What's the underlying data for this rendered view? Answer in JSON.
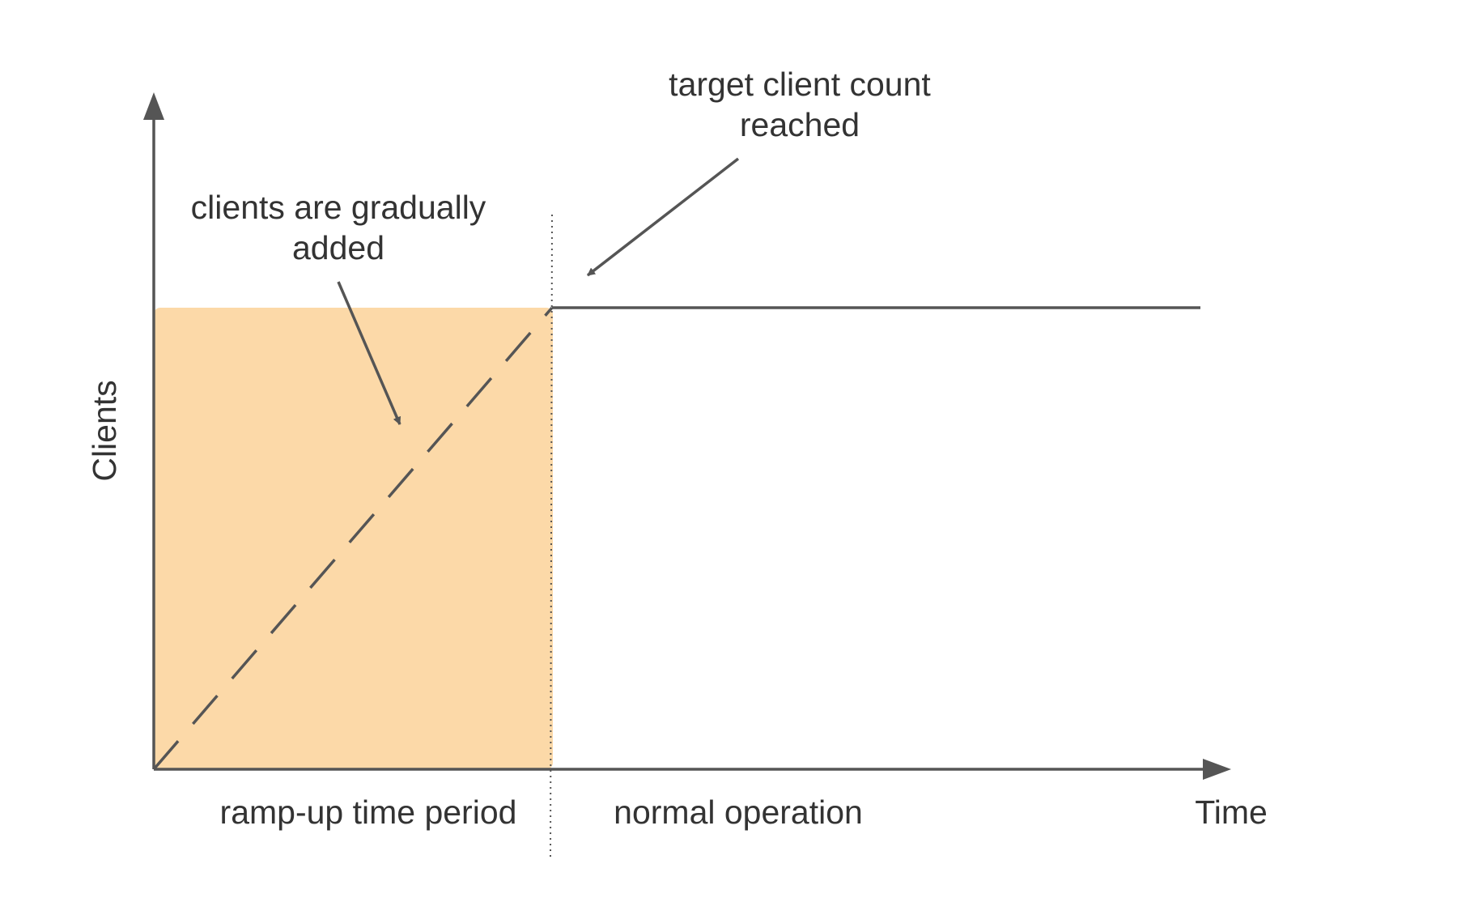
{
  "diagram": {
    "y_axis_label": "Clients",
    "x_axis_label": "Time",
    "phase_labels": {
      "ramp_up": "ramp-up time period",
      "normal": "normal operation"
    },
    "annotations": {
      "gradual": [
        "clients are gradually",
        "added"
      ],
      "target": [
        "target client count",
        "reached"
      ]
    },
    "colors": {
      "ramp_fill": "#FCD9A8",
      "ink": "#555555",
      "text": "#333333",
      "background": "#FFFFFF"
    }
  }
}
